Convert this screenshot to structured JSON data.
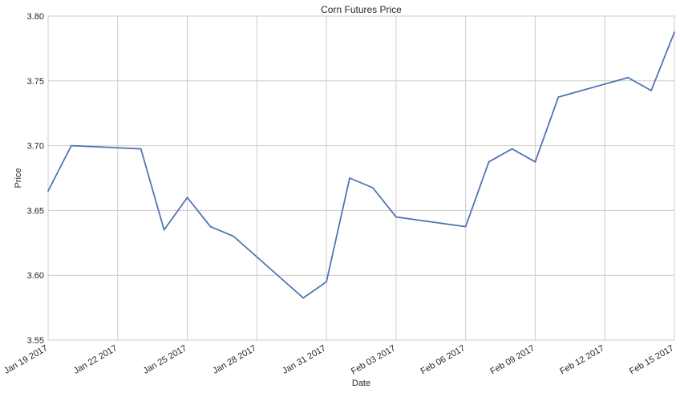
{
  "chart_data": {
    "type": "line",
    "title": "Corn Futures Price",
    "xlabel": "Date",
    "ylabel": "Price",
    "grid": true,
    "ylim": [
      3.55,
      3.8
    ],
    "xlim": [
      "2017-01-19",
      "2017-02-15"
    ],
    "x_tick_labels": [
      "Jan 19 2017",
      "Jan 22 2017",
      "Jan 25 2017",
      "Jan 28 2017",
      "Jan 31 2017",
      "Feb 03 2017",
      "Feb 06 2017",
      "Feb 09 2017",
      "Feb 12 2017",
      "Feb 15 2017"
    ],
    "x_tick_dates": [
      "2017-01-19",
      "2017-01-22",
      "2017-01-25",
      "2017-01-28",
      "2017-01-31",
      "2017-02-03",
      "2017-02-06",
      "2017-02-09",
      "2017-02-12",
      "2017-02-15"
    ],
    "y_tick_labels": [
      "3.55",
      "3.60",
      "3.65",
      "3.70",
      "3.75",
      "3.80"
    ],
    "y_ticks": [
      3.55,
      3.6,
      3.65,
      3.7,
      3.75,
      3.8
    ],
    "series": [
      {
        "color": "#4c72b0",
        "points": [
          {
            "x": "2017-01-19",
            "y": 3.665
          },
          {
            "x": "2017-01-20",
            "y": 3.7
          },
          {
            "x": "2017-01-23",
            "y": 3.6975
          },
          {
            "x": "2017-01-24",
            "y": 3.635
          },
          {
            "x": "2017-01-25",
            "y": 3.66
          },
          {
            "x": "2017-01-26",
            "y": 3.6375
          },
          {
            "x": "2017-01-27",
            "y": 3.63
          },
          {
            "x": "2017-01-30",
            "y": 3.5825
          },
          {
            "x": "2017-01-31",
            "y": 3.595
          },
          {
            "x": "2017-02-01",
            "y": 3.675
          },
          {
            "x": "2017-02-02",
            "y": 3.6675
          },
          {
            "x": "2017-02-03",
            "y": 3.645
          },
          {
            "x": "2017-02-06",
            "y": 3.6375
          },
          {
            "x": "2017-02-07",
            "y": 3.6875
          },
          {
            "x": "2017-02-08",
            "y": 3.6975
          },
          {
            "x": "2017-02-09",
            "y": 3.6875
          },
          {
            "x": "2017-02-10",
            "y": 3.7375
          },
          {
            "x": "2017-02-13",
            "y": 3.7525
          },
          {
            "x": "2017-02-14",
            "y": 3.7425
          },
          {
            "x": "2017-02-15",
            "y": 3.7875
          }
        ]
      }
    ]
  }
}
